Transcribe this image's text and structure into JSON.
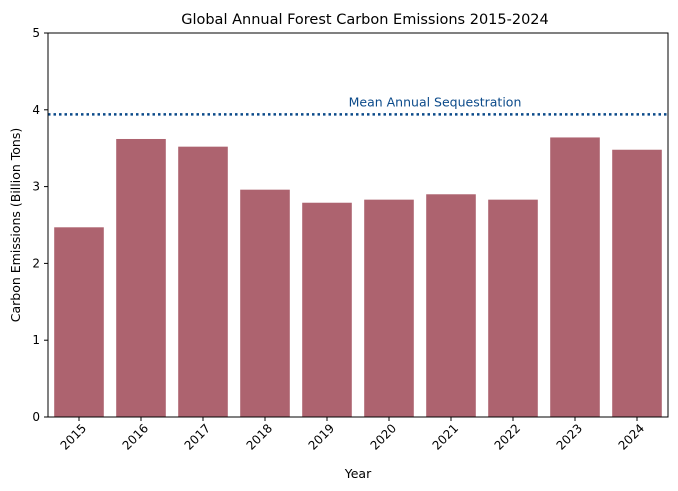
{
  "chart_data": {
    "type": "bar",
    "title": "Global Annual Forest Carbon Emissions 2015-2024",
    "xlabel": "Year",
    "ylabel": "Carbon Emissions (Billion Tons)",
    "categories": [
      "2015",
      "2016",
      "2017",
      "2018",
      "2019",
      "2020",
      "2021",
      "2022",
      "2023",
      "2024"
    ],
    "values": [
      2.47,
      3.62,
      3.52,
      2.96,
      2.79,
      2.83,
      2.9,
      2.83,
      3.64,
      3.48
    ],
    "ylim": [
      0,
      5
    ],
    "yticks": [
      "0",
      "1",
      "2",
      "3",
      "4",
      "5"
    ],
    "grid": false,
    "bar_color": "#ad636f",
    "reference_line": {
      "value": 3.94,
      "label": "Mean Annual Sequestration",
      "style": "dotted",
      "color": "#0b4a8a"
    }
  }
}
